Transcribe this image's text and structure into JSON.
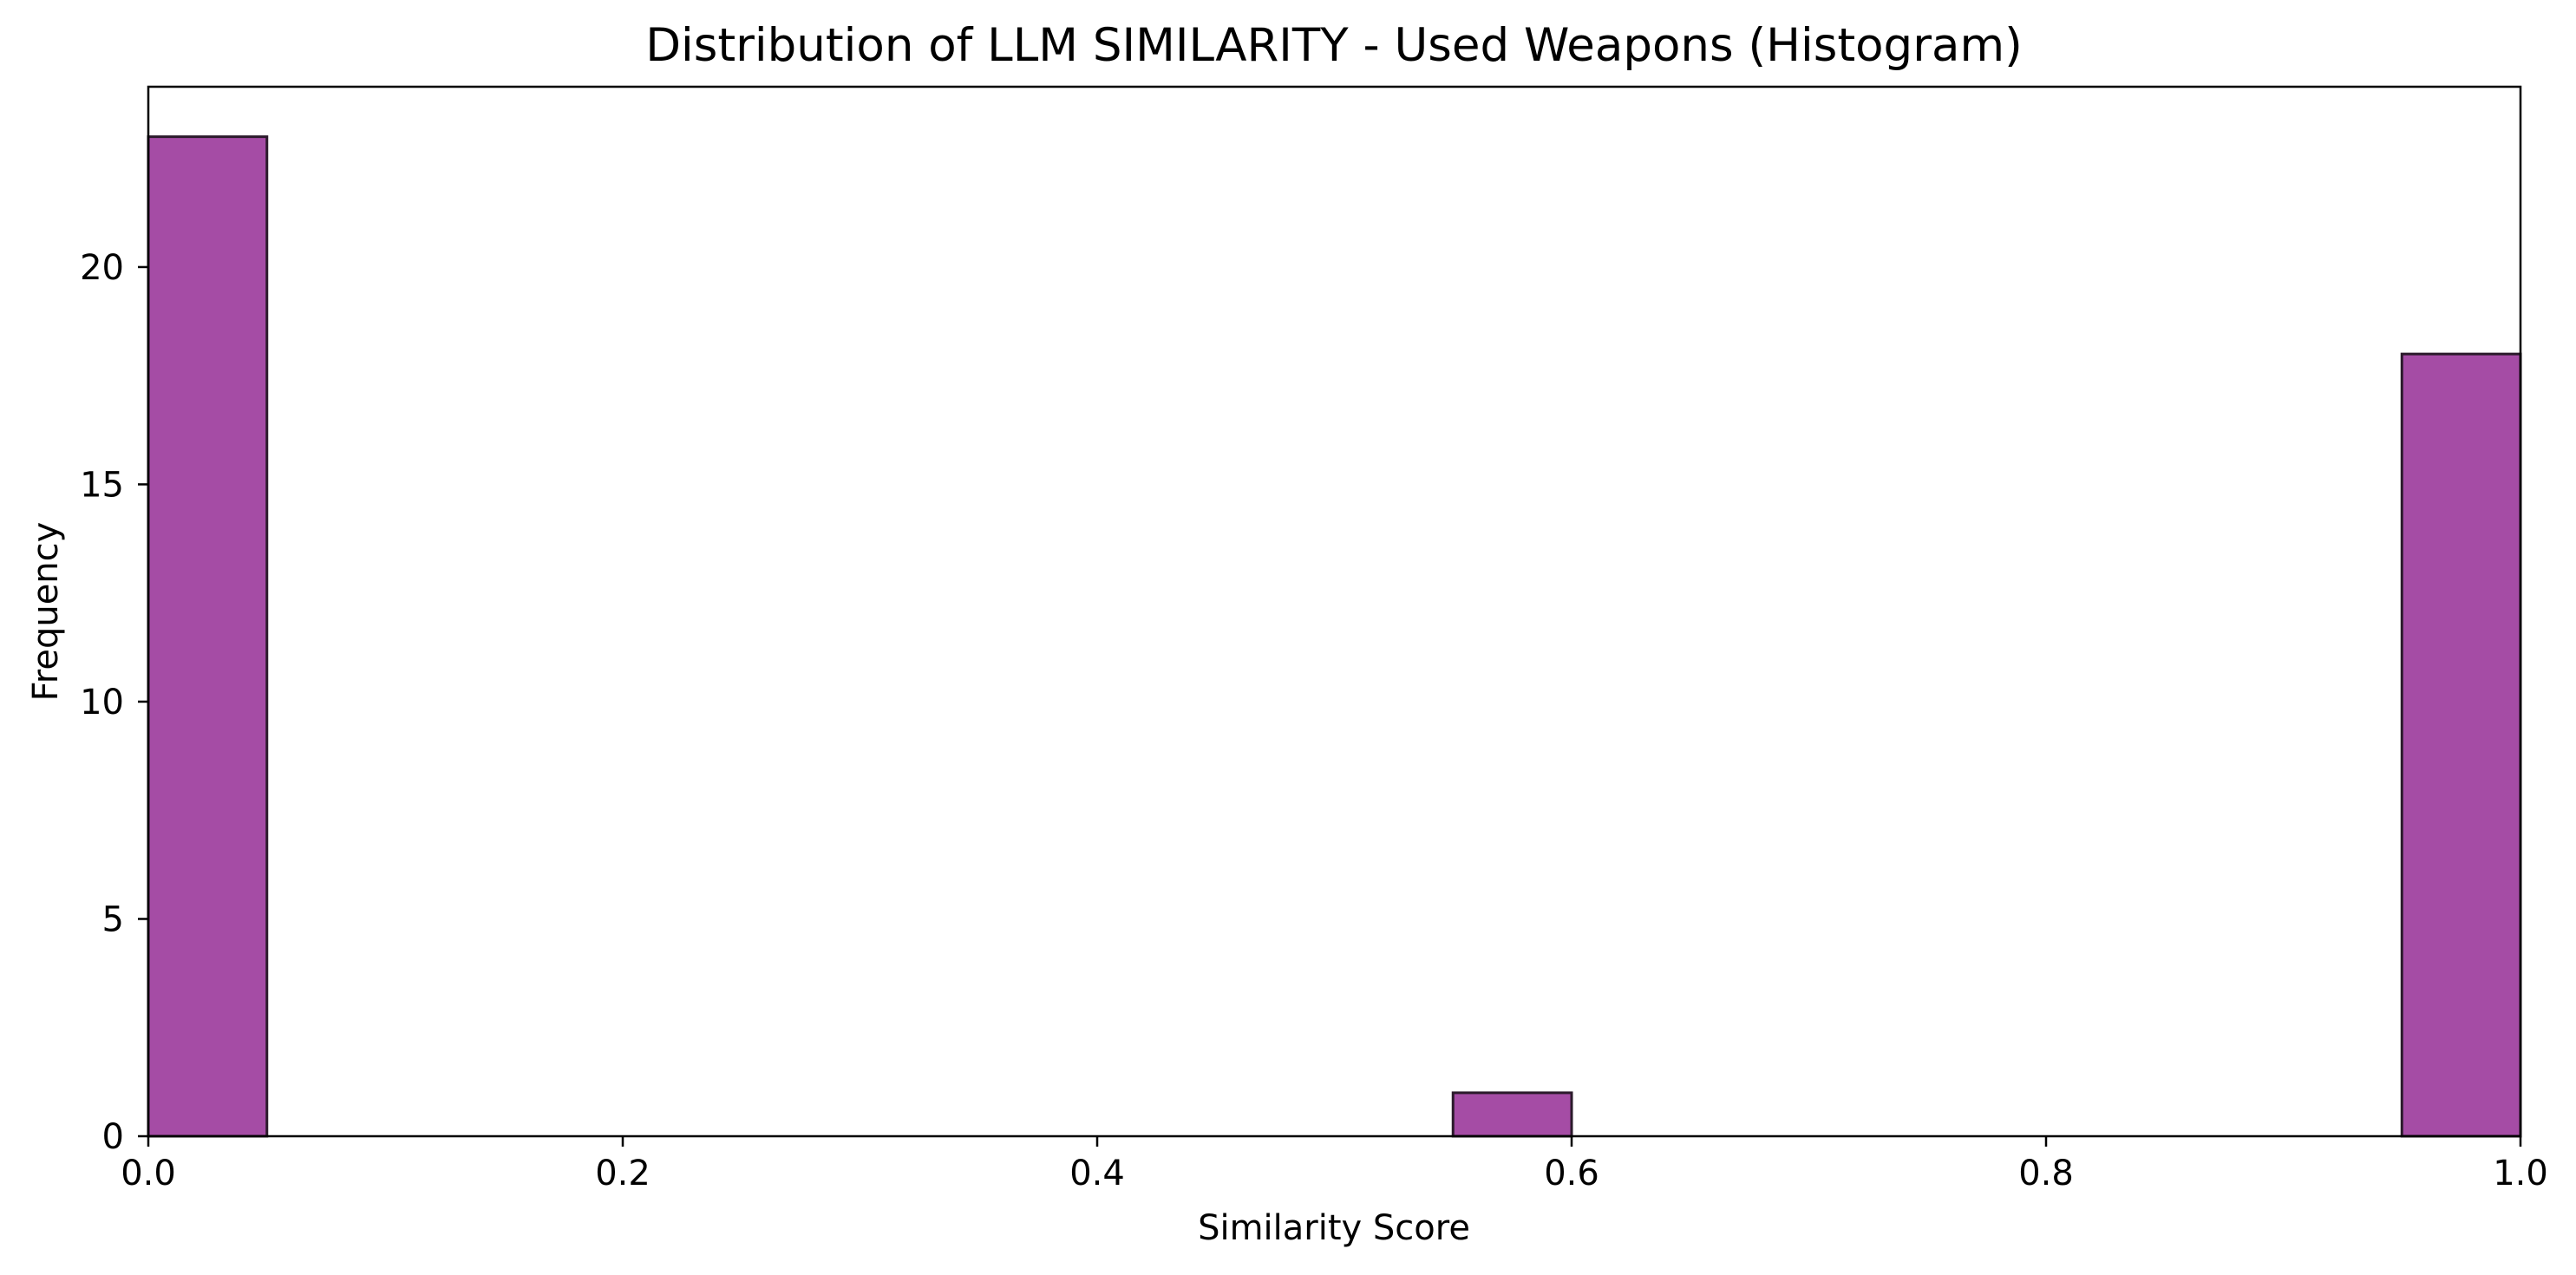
{
  "chart_data": {
    "type": "bar",
    "title": "Distribution of LLM SIMILARITY - Used Weapons (Histogram)",
    "xlabel": "Similarity Score",
    "ylabel": "Frequency",
    "xlim": [
      0.0,
      1.0
    ],
    "ylim": [
      0,
      24.15
    ],
    "x_ticks": [
      "0.0",
      "0.2",
      "0.4",
      "0.6",
      "0.8",
      "1.0"
    ],
    "y_ticks": [
      "0",
      "5",
      "10",
      "15",
      "20"
    ],
    "grid": false,
    "bins": [
      {
        "start": 0.0,
        "end": 0.05,
        "count": 23
      },
      {
        "start": 0.55,
        "end": 0.6,
        "count": 1
      },
      {
        "start": 0.95,
        "end": 1.0,
        "count": 18
      }
    ],
    "colors": {
      "bar_fill": "#a54ca5",
      "bar_edge": "#2b1a2b",
      "axis": "#000000"
    }
  }
}
